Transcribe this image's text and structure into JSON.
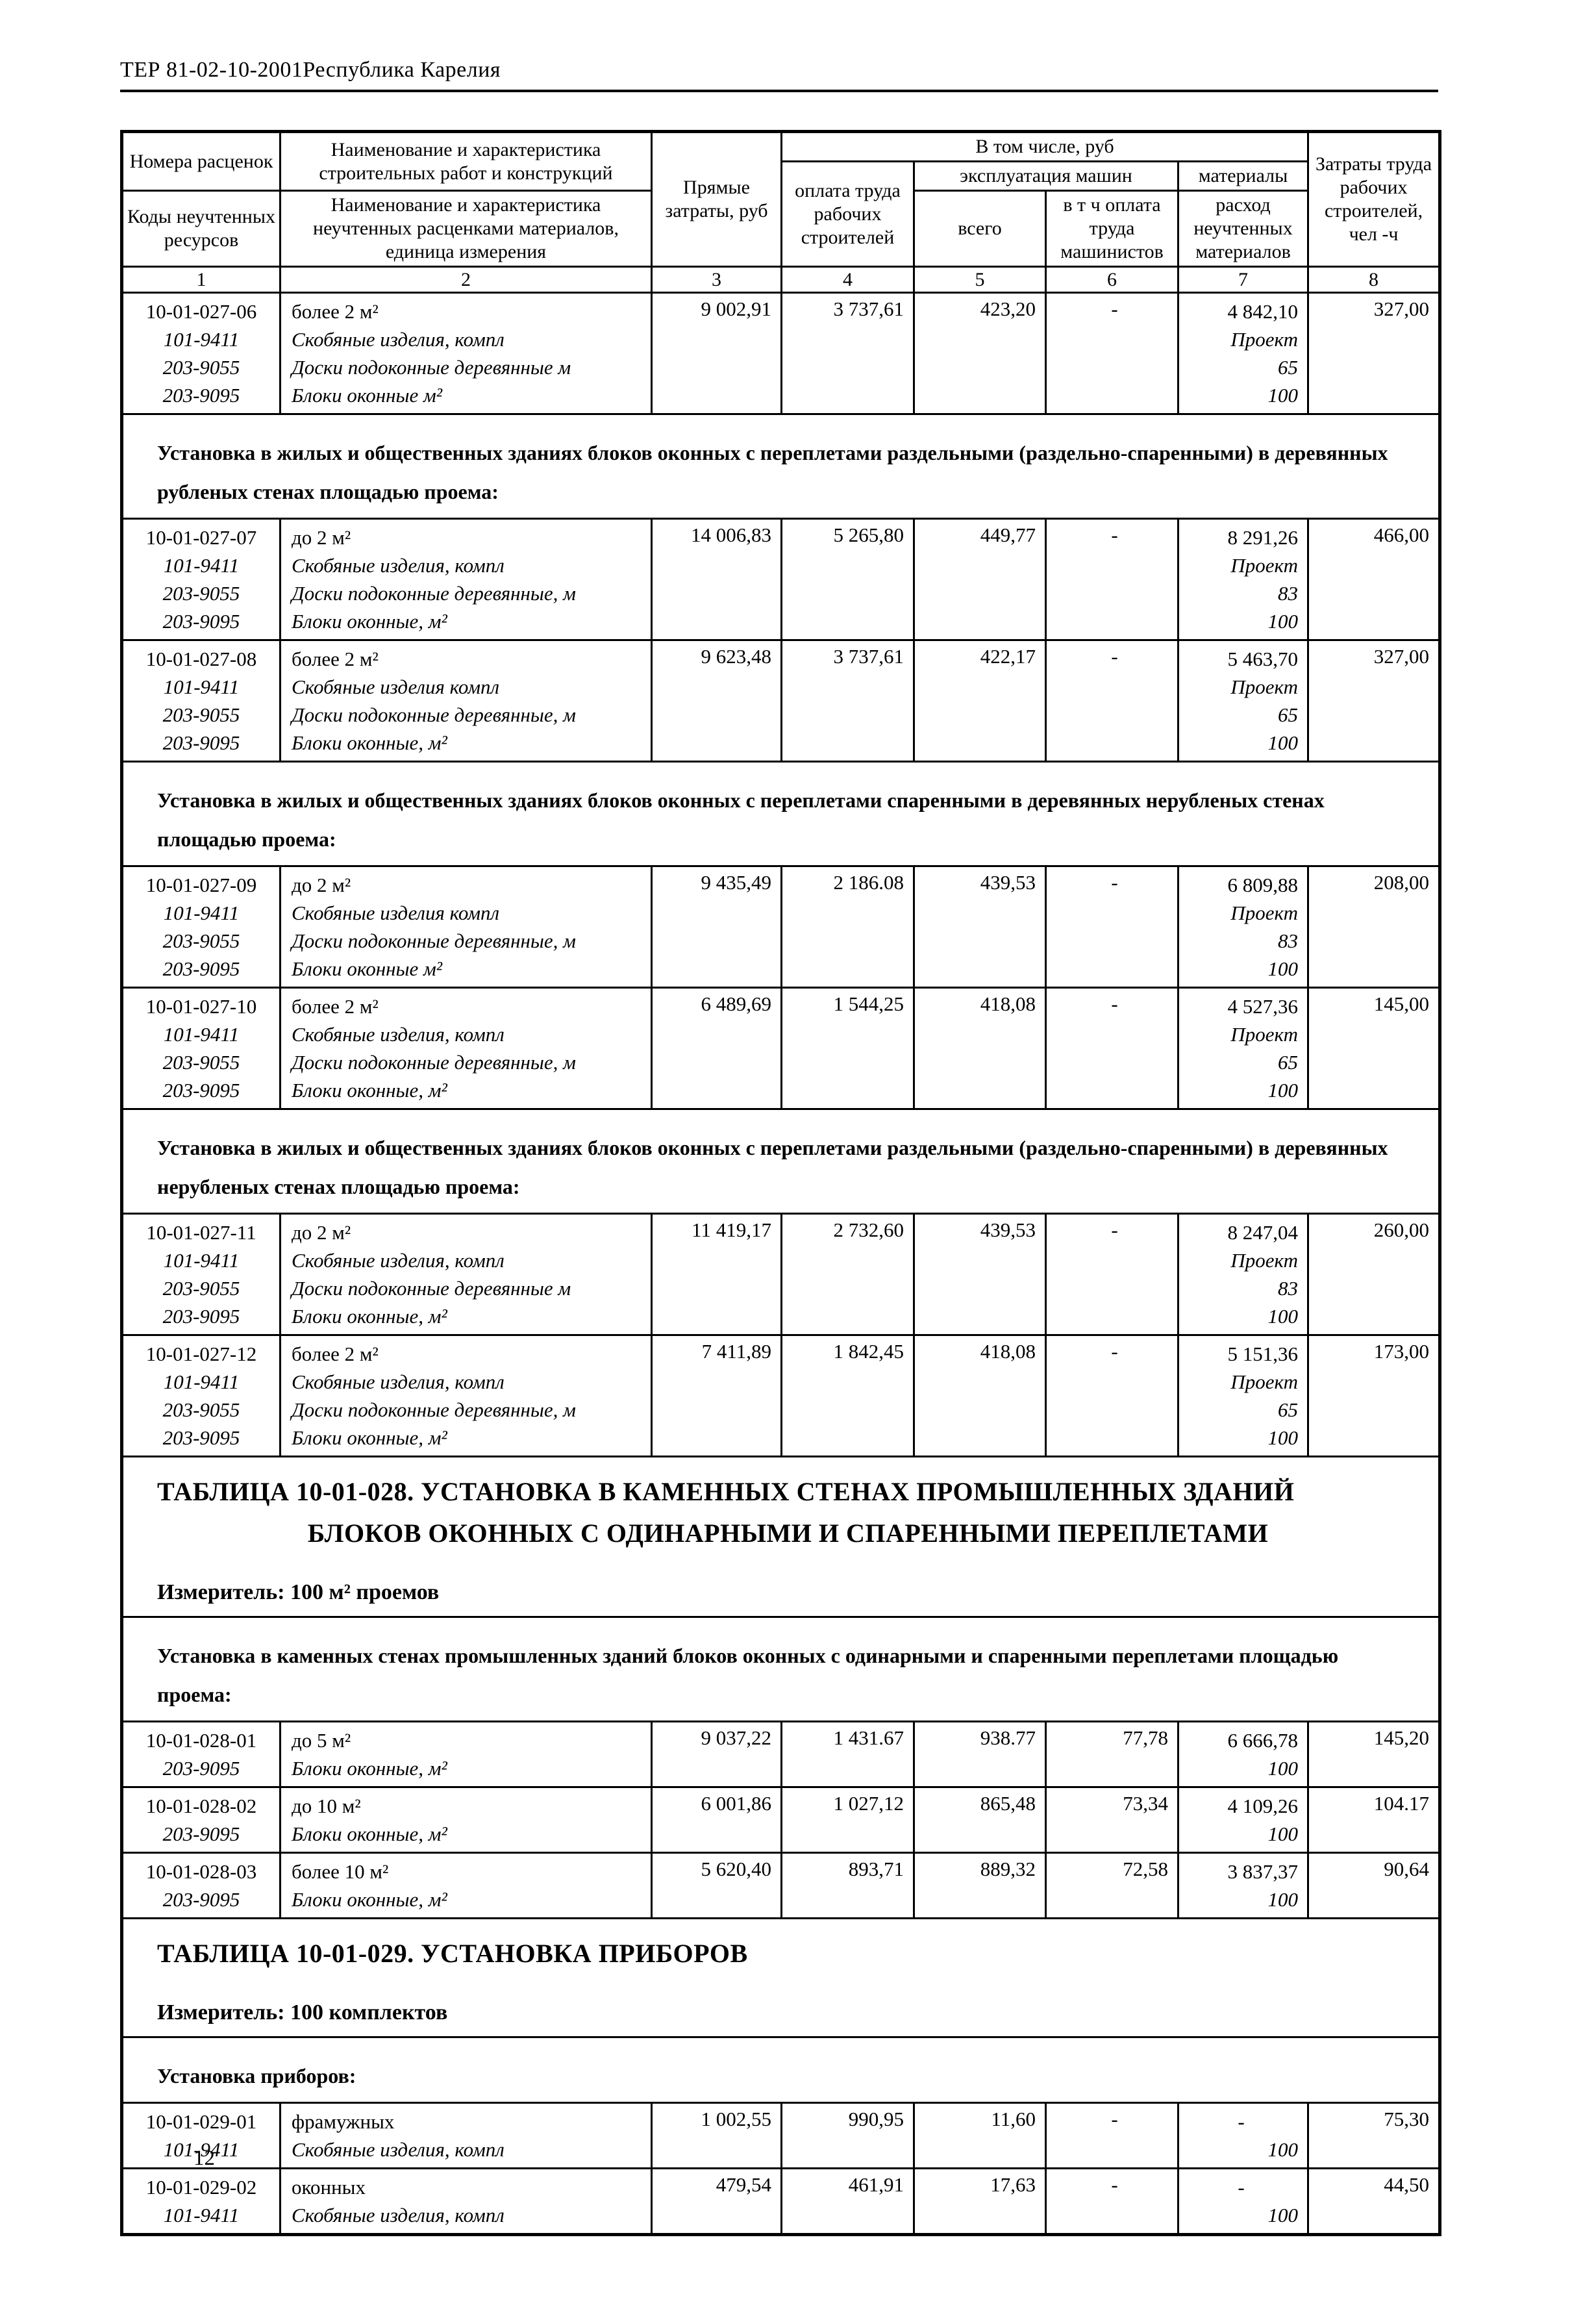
{
  "page": {
    "header_title": "ТЕР 81-02-10-2001Республика Карелия",
    "page_number": "12"
  },
  "table": {
    "head": {
      "col1_top": "Номера расценок",
      "col1_bottom": "Коды неучтенных ресурсов",
      "col2_top": "Наименование и характеристика строительных работ и конструкций",
      "col2_bottom": "Наименование и характеристика неучтенных расценками материалов, единица измерения",
      "col3": "Прямые затраты, руб",
      "group4_7": "В том числе, руб",
      "col4": "оплата труда рабочих строителей",
      "group5_6": "эксплуатация машин",
      "col5": "всего",
      "col6": "в т ч оплата труда машинистов",
      "group7": "материалы",
      "col7": "расход неучтенных материалов",
      "col8": "Затраты труда рабочих строителей, чел -ч",
      "numbers": [
        "1",
        "2",
        "3",
        "4",
        "5",
        "6",
        "7",
        "8"
      ]
    },
    "body": [
      {
        "t": "rate",
        "code": "10-01-027-06",
        "desc": "более 2 м²",
        "direct": "9 002,91",
        "labor": "3 737,61",
        "m_total": "423,20",
        "m_oper": "-",
        "mat": "4 842,10",
        "hours": "327,00",
        "subs": [
          {
            "code": "101-9411",
            "desc": "Скобяные изделия, компл",
            "mat": "Проект"
          },
          {
            "code": "203-9055",
            "desc": "Доски подоконные деревянные  м",
            "mat": "65"
          },
          {
            "code": "203-9095",
            "desc": "Блоки оконные  м²",
            "mat": "100"
          }
        ]
      },
      {
        "t": "section",
        "text": "Установка в жилых и общественных зданиях блоков оконных с переплетами раздельными (раздельно-спаренными) в деревянных рубленых стенах площадью проема:"
      },
      {
        "t": "rate",
        "code": "10-01-027-07",
        "desc": "до 2 м²",
        "direct": "14 006,83",
        "labor": "5 265,80",
        "m_total": "449,77",
        "m_oper": "-",
        "mat": "8 291,26",
        "hours": "466,00",
        "subs": [
          {
            "code": "101-9411",
            "desc": "Скобяные изделия, компл",
            "mat": "Проект"
          },
          {
            "code": "203-9055",
            "desc": "Доски подоконные деревянные, м",
            "mat": "83"
          },
          {
            "code": "203-9095",
            "desc": "Блоки оконные, м²",
            "mat": "100"
          }
        ]
      },
      {
        "t": "rate",
        "code": "10-01-027-08",
        "desc": "более 2 м²",
        "direct": "9 623,48",
        "labor": "3 737,61",
        "m_total": "422,17",
        "m_oper": "-",
        "mat": "5 463,70",
        "hours": "327,00",
        "subs": [
          {
            "code": "101-9411",
            "desc": "Скобяные изделия  компл",
            "mat": "Проект"
          },
          {
            "code": "203-9055",
            "desc": "Доски подоконные деревянные, м",
            "mat": "65"
          },
          {
            "code": "203-9095",
            "desc": "Блоки оконные, м²",
            "mat": "100"
          }
        ]
      },
      {
        "t": "section",
        "text": "Установка в жилых и общественных зданиях блоков оконных с переплетами спаренными в деревянных нерубленых стенах площадью проема:"
      },
      {
        "t": "rate",
        "code": "10-01-027-09",
        "desc": "до 2 м²",
        "direct": "9 435,49",
        "labor": "2 186.08",
        "m_total": "439,53",
        "m_oper": "-",
        "mat": "6 809,88",
        "hours": "208,00",
        "subs": [
          {
            "code": "101-9411",
            "desc": "Скобяные изделия  компл",
            "mat": "Проект"
          },
          {
            "code": "203-9055",
            "desc": "Доски подоконные деревянные, м",
            "mat": "83"
          },
          {
            "code": "203-9095",
            "desc": "Блоки оконные  м²",
            "mat": "100"
          }
        ]
      },
      {
        "t": "rate",
        "code": "10-01-027-10",
        "desc": "более 2 м²",
        "direct": "6 489,69",
        "labor": "1 544,25",
        "m_total": "418,08",
        "m_oper": "-",
        "mat": "4 527,36",
        "hours": "145,00",
        "subs": [
          {
            "code": "101-9411",
            "desc": "Скобяные изделия, компл",
            "mat": "Проект"
          },
          {
            "code": "203-9055",
            "desc": "Доски подоконные деревянные, м",
            "mat": "65"
          },
          {
            "code": "203-9095",
            "desc": "Блоки оконные, м²",
            "mat": "100"
          }
        ]
      },
      {
        "t": "section",
        "text": "Установка в жилых и общественных зданиях блоков оконных с переплетами раздельными (раздельно-спаренными) в деревянных нерубленых стенах площадью проема:"
      },
      {
        "t": "rate",
        "code": "10-01-027-11",
        "desc": "до 2 м²",
        "direct": "11 419,17",
        "labor": "2 732,60",
        "m_total": "439,53",
        "m_oper": "-",
        "mat": "8 247,04",
        "hours": "260,00",
        "subs": [
          {
            "code": "101-9411",
            "desc": "Скобяные изделия, компл",
            "mat": "Проект"
          },
          {
            "code": "203-9055",
            "desc": "Доски подоконные деревянные  м",
            "mat": "83"
          },
          {
            "code": "203-9095",
            "desc": "Блоки оконные, м²",
            "mat": "100"
          }
        ]
      },
      {
        "t": "rate",
        "code": "10-01-027-12",
        "desc": "более 2 м²",
        "direct": "7 411,89",
        "labor": "1 842,45",
        "m_total": "418,08",
        "m_oper": "-",
        "mat": "5 151,36",
        "hours": "173,00",
        "subs": [
          {
            "code": "101-9411",
            "desc": "Скобяные изделия, компл",
            "mat": "Проект"
          },
          {
            "code": "203-9055",
            "desc": "Доски подоконные деревянные, м",
            "mat": "65"
          },
          {
            "code": "203-9095",
            "desc": "Блоки оконные, м²",
            "mat": "100"
          }
        ]
      },
      {
        "t": "title",
        "lines": [
          "ТАБЛИЦА 10-01-028. УСТАНОВКА В КАМЕННЫХ СТЕНАХ ПРОМЫШЛЕННЫХ ЗДАНИЙ",
          "БЛОКОВ ОКОННЫХ С ОДИНАРНЫМИ И СПАРЕННЫМИ ПЕРЕПЛЕТАМИ"
        ],
        "izm": "Измеритель: 100 м² проемов"
      },
      {
        "t": "section",
        "text": "Установка в каменных стенах промышленных зданий блоков оконных с одинарными и спаренными переплетами площадью проема:"
      },
      {
        "t": "rate",
        "code": "10-01-028-01",
        "desc": "до 5 м²",
        "direct": "9 037,22",
        "labor": "1 431.67",
        "m_total": "938.77",
        "m_oper": "77,78",
        "mat": "6 666,78",
        "hours": "145,20",
        "subs": [
          {
            "code": "203-9095",
            "desc": "Блоки оконные, м²",
            "mat": "100"
          }
        ]
      },
      {
        "t": "rate",
        "code": "10-01-028-02",
        "desc": "до 10 м²",
        "direct": "6 001,86",
        "labor": "1 027,12",
        "m_total": "865,48",
        "m_oper": "73,34",
        "mat": "4 109,26",
        "hours": "104.17",
        "subs": [
          {
            "code": "203-9095",
            "desc": "Блоки оконные, м²",
            "mat": "100"
          }
        ]
      },
      {
        "t": "rate",
        "code": "10-01-028-03",
        "desc": "более 10 м²",
        "direct": "5 620,40",
        "labor": "893,71",
        "m_total": "889,32",
        "m_oper": "72,58",
        "mat": "3 837,37",
        "hours": "90,64",
        "subs": [
          {
            "code": "203-9095",
            "desc": "Блоки оконные, м²",
            "mat": "100"
          }
        ]
      },
      {
        "t": "title",
        "lines": [
          "ТАБЛИЦА 10-01-029. УСТАНОВКА ПРИБОРОВ"
        ],
        "izm": "Измеритель: 100 комплектов"
      },
      {
        "t": "section",
        "text": "Установка приборов:"
      },
      {
        "t": "rate",
        "code": "10-01-029-01",
        "desc": "фрамужных",
        "direct": "1 002,55",
        "labor": "990,95",
        "m_total": "11,60",
        "m_oper": "-",
        "mat": "-",
        "hours": "75,30",
        "subs": [
          {
            "code": "101-9411",
            "desc": "Скобяные изделия, компл",
            "mat": "100"
          }
        ]
      },
      {
        "t": "rate",
        "code": "10-01-029-02",
        "desc": "оконных",
        "direct": "479,54",
        "labor": "461,91",
        "m_total": "17,63",
        "m_oper": "-",
        "mat": "-",
        "hours": "44,50",
        "subs": [
          {
            "code": "101-9411",
            "desc": "Скобяные изделия, компл",
            "mat": "100"
          }
        ]
      }
    ]
  }
}
